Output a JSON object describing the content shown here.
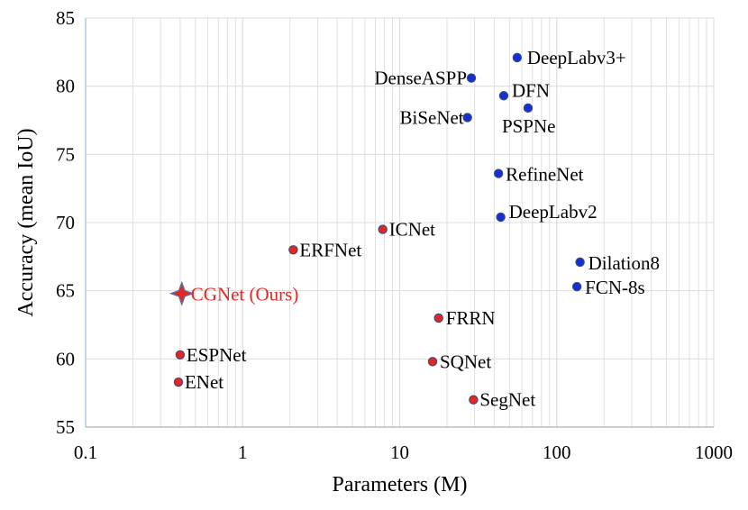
{
  "chart_data": {
    "type": "scatter",
    "title": "",
    "xlabel": "Parameters (M)",
    "ylabel": "Accuracy (mean IoU)",
    "xscale": "log",
    "xlim": [
      0.1,
      1000
    ],
    "ylim": [
      55,
      85
    ],
    "xticks": [
      "0.1",
      "1",
      "10",
      "100",
      "1000"
    ],
    "yticks": [
      "55",
      "60",
      "65",
      "70",
      "75",
      "80",
      "85"
    ],
    "grid": "vertical log gridlines and horizontal gridlines",
    "colors": {
      "highlight_marker": "#e8251f",
      "highlight_label": "#e8251f",
      "light_marker": "#e8251f",
      "heavy_marker": "#1230d6",
      "star_outline": "#5a6f9a",
      "grid": "#dcdcdc"
    },
    "points": [
      {
        "label": "CGNet (Ours)",
        "x": 0.41,
        "y": 64.8,
        "group": "highlight"
      },
      {
        "label": "ESPNet",
        "x": 0.4,
        "y": 60.3,
        "group": "light"
      },
      {
        "label": "ENet",
        "x": 0.39,
        "y": 58.3,
        "group": "light"
      },
      {
        "label": "ERFNet",
        "x": 2.1,
        "y": 68.0,
        "group": "light"
      },
      {
        "label": "ICNet",
        "x": 7.8,
        "y": 69.5,
        "group": "light"
      },
      {
        "label": "FRRN",
        "x": 17.7,
        "y": 63.0,
        "group": "light"
      },
      {
        "label": "SQNet",
        "x": 16.2,
        "y": 59.8,
        "group": "light"
      },
      {
        "label": "SegNet",
        "x": 29.5,
        "y": 57.0,
        "group": "light"
      },
      {
        "label": "DeepLabv3+",
        "x": 56.0,
        "y": 82.1,
        "group": "heavy"
      },
      {
        "label": "DenseASPP",
        "x": 28.6,
        "y": 80.6,
        "group": "heavy"
      },
      {
        "label": "DFN",
        "x": 46.0,
        "y": 79.3,
        "group": "heavy"
      },
      {
        "label": "BiSeNet",
        "x": 27.0,
        "y": 77.7,
        "group": "heavy"
      },
      {
        "label": "PSPNe",
        "x": 65.7,
        "y": 78.4,
        "group": "heavy"
      },
      {
        "label": "RefineNet",
        "x": 42.6,
        "y": 73.6,
        "group": "heavy"
      },
      {
        "label": "DeepLabv2",
        "x": 44.0,
        "y": 70.4,
        "group": "heavy"
      },
      {
        "label": "Dilation8",
        "x": 140.8,
        "y": 67.1,
        "group": "heavy"
      },
      {
        "label": "FCN-8s",
        "x": 134.5,
        "y": 65.3,
        "group": "heavy"
      }
    ]
  }
}
